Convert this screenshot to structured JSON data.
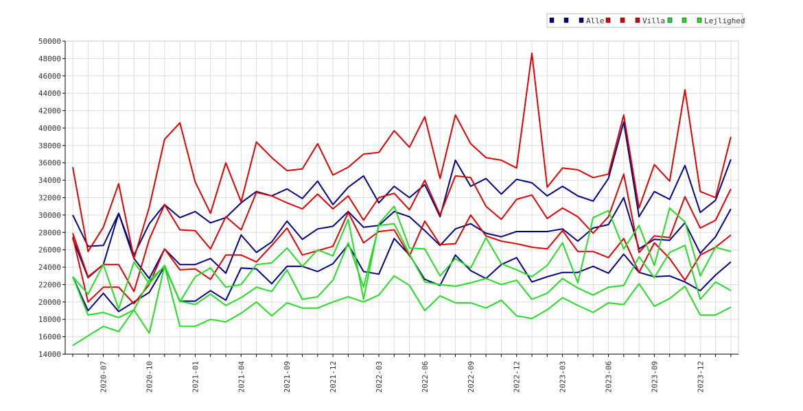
{
  "chart_data": {
    "type": "line",
    "title": "",
    "xlabel": "",
    "ylabel": "",
    "ylim": [
      14000,
      50000
    ],
    "y_ticks": [
      14000,
      16000,
      18000,
      20000,
      22000,
      24000,
      26000,
      28000,
      30000,
      32000,
      34000,
      36000,
      38000,
      40000,
      42000,
      44000,
      46000,
      48000,
      50000
    ],
    "x_tick_labels": [
      "2020-07",
      "2020-10",
      "2021-01",
      "2021-04",
      "2021-09",
      "2021-12",
      "2022-03",
      "2022-06",
      "2022-09",
      "2022-12",
      "2023-03",
      "2023-06",
      "2023-09",
      "2023-12"
    ],
    "x_tick_positions": [
      2,
      5,
      8,
      11,
      14,
      17,
      20,
      23,
      26,
      29,
      32,
      35,
      38,
      41
    ],
    "point_count": 44,
    "grid": true,
    "legend_position": "top-right",
    "legend": [
      {
        "label": "Alle",
        "color": "#000080"
      },
      {
        "label": "Villa",
        "color": "#e00000"
      },
      {
        "label": "Lejlighed",
        "color": "#22dd22"
      }
    ],
    "series": [
      {
        "group": "Alle",
        "color": "#000080",
        "values": [
          30000,
          26400,
          26500,
          30200,
          25400,
          29000,
          31200,
          29700,
          30400,
          29100,
          29700,
          31400,
          32700,
          32200,
          33000,
          31900,
          33900,
          31200,
          33200,
          34500,
          31400,
          33300,
          32000,
          33500,
          29800,
          36300,
          33300,
          34200,
          32400,
          34100,
          33700,
          32200,
          33300,
          32200,
          31600,
          34200,
          40700,
          29800,
          32700,
          31800,
          35700,
          30300,
          31700,
          36400
        ]
      },
      {
        "group": "Alle",
        "color": "#000080",
        "values": [
          27300,
          22800,
          24300,
          30200,
          25000,
          22700,
          26100,
          24300,
          24300,
          25000,
          23300,
          27700,
          25700,
          26900,
          29300,
          27200,
          28400,
          28700,
          30400,
          28600,
          28800,
          30400,
          29800,
          28200,
          26500,
          28400,
          29000,
          27900,
          27500,
          28100,
          28100,
          28100,
          28400,
          27000,
          28500,
          28900,
          32000,
          26100,
          27200,
          27100,
          29100,
          25600,
          27500,
          30700
        ]
      },
      {
        "group": "Alle",
        "color": "#000080",
        "values": [
          22900,
          19000,
          21000,
          18900,
          20000,
          21100,
          24100,
          20100,
          20100,
          21300,
          20200,
          23900,
          23800,
          22100,
          24100,
          24100,
          23500,
          24400,
          26600,
          23500,
          23200,
          27300,
          25400,
          22600,
          21900,
          25400,
          23600,
          22700,
          24300,
          25100,
          22300,
          22900,
          23400,
          23400,
          24100,
          23300,
          25500,
          23400,
          22900,
          23000,
          22300,
          21300,
          23100,
          24600
        ]
      },
      {
        "group": "Villa",
        "color": "#e00000",
        "values": [
          35500,
          25800,
          28600,
          33600,
          25000,
          30900,
          38700,
          40600,
          33800,
          30200,
          36000,
          31500,
          38400,
          36600,
          35100,
          35300,
          38200,
          34600,
          35500,
          37000,
          37200,
          39700,
          37800,
          41300,
          34200,
          41500,
          38200,
          36600,
          36300,
          35400,
          48600,
          33200,
          35400,
          35200,
          34300,
          34700,
          41500,
          30800,
          35800,
          33900,
          44400,
          32700,
          32000,
          39000
        ]
      },
      {
        "group": "Villa",
        "color": "#e00000",
        "values": [
          27900,
          22900,
          24300,
          24300,
          21200,
          27200,
          31200,
          28300,
          28200,
          26100,
          29800,
          28300,
          32600,
          32200,
          31400,
          30700,
          32400,
          30700,
          32200,
          29400,
          32000,
          32500,
          30600,
          34000,
          30000,
          34500,
          34300,
          31000,
          29500,
          31800,
          32300,
          29600,
          30800,
          29800,
          27900,
          29800,
          34700,
          25700,
          27600,
          27400,
          32100,
          28500,
          29400,
          33000
        ]
      },
      {
        "group": "Villa",
        "color": "#e00000",
        "values": [
          27500,
          20000,
          21700,
          21700,
          19800,
          22000,
          26100,
          23700,
          23800,
          22600,
          25400,
          25400,
          24600,
          26500,
          28500,
          25400,
          25900,
          26400,
          30300,
          26800,
          28100,
          28300,
          25300,
          29300,
          26600,
          26700,
          30000,
          27600,
          27000,
          26700,
          26300,
          26100,
          28200,
          25800,
          25800,
          25100,
          27300,
          23400,
          26800,
          25000,
          22500,
          25400,
          26300,
          27700
        ]
      },
      {
        "group": "Lejlighed",
        "color": "#22dd22",
        "values": [
          22900,
          20900,
          24300,
          19200,
          24600,
          22100,
          24200,
          20000,
          22900,
          23900,
          21700,
          22000,
          24300,
          24500,
          26200,
          24100,
          26000,
          25300,
          29500,
          20300,
          29000,
          31000,
          26200,
          26100,
          23000,
          25000,
          23900,
          27400,
          24400,
          23700,
          22900,
          24200,
          26800,
          22200,
          29700,
          30500,
          26100,
          28800,
          24200,
          30800,
          29200,
          23000,
          26300,
          25800
        ]
      },
      {
        "group": "Lejlighed",
        "color": "#22dd22",
        "values": [
          22900,
          18500,
          18800,
          18200,
          19100,
          22500,
          24100,
          17200,
          17200,
          18000,
          17700,
          18700,
          20000,
          18400,
          19900,
          19300,
          19300,
          20000,
          20600,
          20000,
          20800,
          23000,
          21900,
          19000,
          20700,
          19900,
          19900,
          19300,
          20200,
          18400,
          18100,
          19100,
          20500,
          19600,
          18800,
          19900,
          19700,
          22100,
          19500,
          20400,
          21800,
          18500,
          18500,
          19400
        ]
      },
      {
        "group": "Lejlighed",
        "color": "#22dd22",
        "values": [
          15000,
          16100,
          17200,
          16600,
          19100,
          16400,
          24200,
          20100,
          19700,
          20900,
          19600,
          20500,
          21700,
          21200,
          23700,
          20300,
          20600,
          22500,
          26800,
          21700,
          28800,
          29000,
          25500,
          22300,
          22000,
          21800,
          22200,
          22700,
          22000,
          22500,
          20300,
          21000,
          22700,
          21600,
          20800,
          21700,
          21900,
          25200,
          22800,
          25700,
          26500,
          20300,
          22300,
          21300
        ]
      }
    ]
  }
}
